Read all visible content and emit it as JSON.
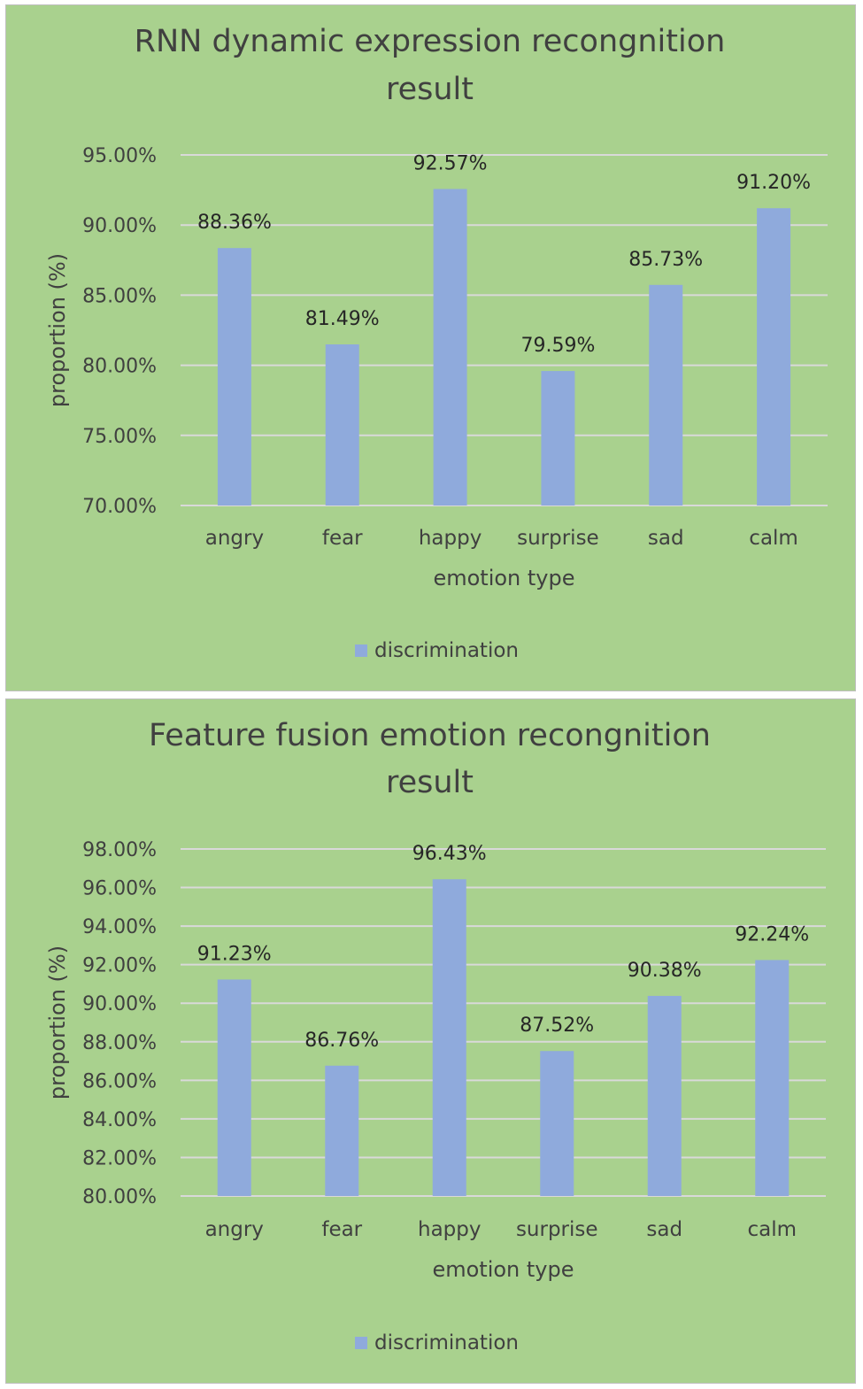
{
  "chart_data": [
    {
      "type": "bar",
      "title_lines": [
        "RNN dynamic expression recongnition",
        "result"
      ],
      "xlabel": "emotion type",
      "ylabel": "proportion (%)",
      "categories": [
        "angry",
        "fear",
        "happy",
        "surprise",
        "sad",
        "calm"
      ],
      "series": [
        {
          "name": "discrimination",
          "values": [
            88.36,
            81.49,
            92.57,
            79.59,
            85.73,
            91.2
          ],
          "labels": [
            "88.36%",
            "81.49%",
            "92.57%",
            "79.59%",
            "85.73%",
            "91.20%"
          ]
        }
      ],
      "ylim": [
        70,
        95
      ],
      "yticks": [
        "70.00%",
        "75.00%",
        "80.00%",
        "85.00%",
        "90.00%",
        "95.00%"
      ],
      "grid": true,
      "legend": "bottom-center",
      "colors": {
        "background": "#a9d18e",
        "bar": "#8faadc",
        "grid": "#d9d9d9",
        "text": "#404040"
      }
    },
    {
      "type": "bar",
      "title_lines": [
        "Feature fusion emotion recongnition",
        "result"
      ],
      "xlabel": "emotion type",
      "ylabel": "proportion (%)",
      "categories": [
        "angry",
        "fear",
        "happy",
        "surprise",
        "sad",
        "calm"
      ],
      "series": [
        {
          "name": "discrimination",
          "values": [
            91.23,
            86.76,
            96.43,
            87.52,
            90.38,
            92.24
          ],
          "labels": [
            "91.23%",
            "86.76%",
            "96.43%",
            "87.52%",
            "90.38%",
            "92.24%"
          ]
        }
      ],
      "ylim": [
        80,
        98
      ],
      "yticks": [
        "80.00%",
        "82.00%",
        "84.00%",
        "86.00%",
        "88.00%",
        "90.00%",
        "92.00%",
        "94.00%",
        "96.00%",
        "98.00%"
      ],
      "grid": true,
      "legend": "bottom-center",
      "colors": {
        "background": "#a9d18e",
        "bar": "#8faadc",
        "grid": "#d9d9d9",
        "text": "#404040"
      }
    }
  ]
}
